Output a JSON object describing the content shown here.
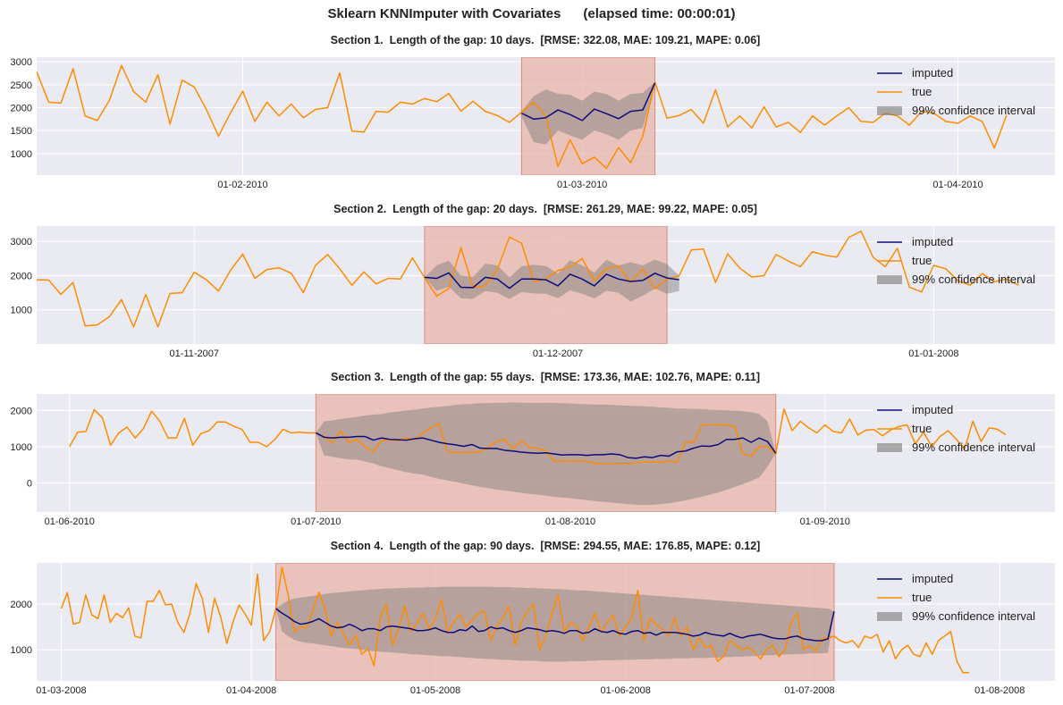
{
  "figure": {
    "title": "Sklearn KNNImputer with Covariates",
    "elapsed": "(elapsed time: 00:00:01)"
  },
  "legend": {
    "imputed": "imputed",
    "true": "true",
    "ci": "99% confidence interval"
  },
  "colors": {
    "imputed": "#0d0d7a",
    "true": "#ff8c00",
    "ci": "#7a7a7a",
    "gap": "#e8b4a8",
    "gap_edge": "#d98a78",
    "axes_bg": "#eaeaf2",
    "grid": "#ffffff"
  },
  "chart_data": [
    {
      "type": "line",
      "title": "Section 1.  Length of the gap: 10 days.  [RMSE: 322.08, MAE: 109.21, MAPE: 0.06]",
      "x_tick_labels": [
        "01-02-2010",
        "01-03-2010",
        "01-04-2010"
      ],
      "x_tick_positions": [
        17,
        45,
        76
      ],
      "xlim": [
        0,
        84
      ],
      "ylim": [
        530,
        3100
      ],
      "y_ticks": [
        1000,
        1500,
        2000,
        2500,
        3000
      ],
      "y_tick_labels": [
        "1000",
        "1500",
        "2000",
        "2500",
        "3000"
      ],
      "gap": [
        40,
        51
      ],
      "true": [
        2780,
        2120,
        2100,
        2850,
        1820,
        1720,
        2160,
        2920,
        2350,
        2120,
        2720,
        1640,
        2600,
        2450,
        1960,
        1380,
        1890,
        2360,
        1700,
        2120,
        1820,
        2080,
        1780,
        1960,
        2000,
        2760,
        1490,
        1470,
        1920,
        1900,
        2120,
        2080,
        2200,
        2130,
        2310,
        1920,
        2140,
        1920,
        1830,
        1680,
        1900,
        2120,
        1820,
        720,
        1300,
        780,
        920,
        680,
        1130,
        800,
        1380,
        2560,
        1770,
        1830,
        1960,
        1660,
        2390,
        1580,
        1820,
        1560,
        2020,
        1580,
        1680,
        1460,
        1820,
        1620,
        1820,
        2000,
        1700,
        1680,
        1880,
        1820,
        1620,
        1920,
        1880,
        1700,
        1660,
        1820,
        1700,
        1120,
        1830
      ],
      "imputed": [
        1880,
        1750,
        1780,
        1950,
        1850,
        1720,
        1970,
        1870,
        1760,
        1920,
        1950,
        2540
      ],
      "ci_lower": [
        1800,
        1250,
        1200,
        1500,
        1400,
        1300,
        1500,
        1420,
        1300,
        1500,
        1560,
        2520
      ],
      "ci_upper": [
        1920,
        2250,
        2400,
        2300,
        2280,
        2150,
        2350,
        2300,
        2150,
        2300,
        2320,
        2560
      ]
    },
    {
      "type": "line",
      "title": "Section 2.  Length of the gap: 20 days.  [RMSE: 261.29, MAE: 99.22, MAPE: 0.05]",
      "x_tick_labels": [
        "01-11-2007",
        "01-12-2007",
        "01-01-2008"
      ],
      "x_tick_positions": [
        13,
        43,
        74
      ],
      "xlim": [
        0,
        84
      ],
      "ylim": [
        0,
        3450
      ],
      "y_ticks": [
        1000,
        2000,
        3000
      ],
      "y_tick_labels": [
        "1000",
        "2000",
        "3000"
      ],
      "gap": [
        32,
        52
      ],
      "true": [
        1880,
        1870,
        1450,
        1800,
        530,
        560,
        800,
        1300,
        500,
        1450,
        500,
        1480,
        1500,
        2100,
        1880,
        1550,
        2160,
        2630,
        1920,
        2180,
        2230,
        2070,
        1500,
        2300,
        2620,
        2200,
        1720,
        2110,
        1760,
        1920,
        1900,
        2520,
        1940,
        1400,
        1620,
        2820,
        1660,
        1700,
        2180,
        3130,
        2950,
        1820,
        1900,
        2150,
        2250,
        2500,
        1850,
        2200,
        2280,
        1800,
        2200,
        1620,
        1900,
        2000,
        2750,
        2780,
        1800,
        2640,
        2220,
        1960,
        2000,
        2620,
        2430,
        2260,
        2700,
        2600,
        2540,
        3120,
        3300,
        2540,
        2260,
        2800,
        1660,
        1520,
        2300,
        2200,
        1850,
        1720,
        2060,
        1820,
        1900,
        1720
      ],
      "imputed": [
        1950,
        1920,
        2080,
        1660,
        1650,
        1950,
        1900,
        1630,
        1900,
        1900,
        1880,
        1700,
        2040,
        1900,
        1700,
        2040,
        1900,
        1830,
        1860,
        2070,
        1930,
        1880
      ],
      "ci_lower": [
        1950,
        1560,
        1680,
        1340,
        1320,
        1550,
        1500,
        1320,
        1520,
        1480,
        1470,
        1340,
        1570,
        1470,
        1330,
        1560,
        1500,
        1240,
        1410,
        1620,
        1470,
        1550
      ],
      "ci_upper": [
        1950,
        2300,
        2440,
        2000,
        1960,
        2350,
        2300,
        1950,
        2270,
        2320,
        2280,
        2060,
        2450,
        2300,
        2090,
        2460,
        2300,
        2390,
        2300,
        2470,
        2340,
        2000
      ]
    },
    {
      "type": "line",
      "title": "Section 3.  Length of the gap: 55 days.  [RMSE: 173.36, MAE: 102.76, MAPE: 0.11]",
      "x_tick_labels": [
        "01-06-2010",
        "01-07-2010",
        "01-08-2010",
        "01-09-2010"
      ],
      "x_tick_positions": [
        0,
        30,
        61,
        92
      ],
      "xlim": [
        -4,
        120
      ],
      "ylim": [
        -800,
        2450
      ],
      "y_ticks": [
        0,
        1000,
        2000
      ],
      "y_tick_labels": [
        "0",
        "1000",
        "2000"
      ],
      "gap": [
        30,
        86
      ],
      "true": [
        1000,
        1400,
        1420,
        2020,
        1800,
        1040,
        1380,
        1540,
        1240,
        1500,
        1980,
        1700,
        1240,
        1240,
        1780,
        1040,
        1360,
        1440,
        1680,
        1680,
        1560,
        1480,
        1120,
        1120,
        1000,
        1200,
        1480,
        1380,
        1400,
        1380,
        1380,
        1280,
        1100,
        1440,
        1120,
        1200,
        1000,
        860,
        1160,
        1200,
        1160,
        1240,
        1200,
        1360,
        1520,
        1640,
        860,
        840,
        840,
        840,
        860,
        980,
        1140,
        1200,
        940,
        1160,
        980,
        960,
        880,
        600,
        600,
        600,
        600,
        600,
        540,
        540,
        540,
        540,
        540,
        560,
        580,
        580,
        580,
        600,
        580,
        1120,
        1120,
        1600,
        1600,
        1600,
        1600,
        1560,
        800,
        740,
        1000,
        1000,
        800,
        2040,
        1440,
        1700,
        1520,
        1380,
        1600,
        1420,
        1380,
        1760,
        1320,
        1460,
        1470,
        1300,
        1460,
        1560,
        1600,
        1080,
        1400,
        1000,
        1280,
        1440,
        1200,
        940,
        1700,
        1140,
        1520,
        1480,
        1330
      ],
      "imputed": [
        1380,
        1260,
        1240,
        1260,
        1260,
        1280,
        1280,
        1180,
        1240,
        1200,
        1190,
        1180,
        1220,
        1240,
        1180,
        1120,
        1080,
        1050,
        1010,
        1060,
        960,
        950,
        950,
        900,
        880,
        850,
        830,
        820,
        830,
        800,
        770,
        780,
        780,
        760,
        780,
        780,
        800,
        780,
        700,
        680,
        720,
        700,
        760,
        740,
        860,
        880,
        960,
        1020,
        1010,
        1060,
        1200,
        1200,
        1240,
        1120,
        1240,
        1140,
        820
      ],
      "ci_lower": [
        1380,
        760,
        720,
        680,
        650,
        640,
        590,
        540,
        460,
        410,
        350,
        300,
        260,
        230,
        170,
        110,
        70,
        30,
        -20,
        -60,
        -110,
        -140,
        -180,
        -210,
        -240,
        -270,
        -300,
        -320,
        -350,
        -380,
        -400,
        -420,
        -450,
        -470,
        -500,
        -520,
        -540,
        -560,
        -580,
        -600,
        -610,
        -600,
        -580,
        -560,
        -520,
        -480,
        -430,
        -380,
        -320,
        -260,
        -190,
        -110,
        -30,
        60,
        150,
        450,
        820
      ],
      "ci_upper": [
        1380,
        1700,
        1720,
        1760,
        1790,
        1820,
        1860,
        1880,
        1900,
        1940,
        1970,
        2000,
        2020,
        2050,
        2080,
        2100,
        2120,
        2150,
        2170,
        2180,
        2200,
        2200,
        2210,
        2210,
        2220,
        2210,
        2210,
        2200,
        2210,
        2210,
        2200,
        2190,
        2180,
        2170,
        2160,
        2160,
        2150,
        2140,
        2130,
        2120,
        2110,
        2100,
        2080,
        2070,
        2050,
        2050,
        2040,
        2030,
        2020,
        2010,
        2000,
        1990,
        1980,
        1950,
        1900,
        1700,
        820
      ]
    },
    {
      "type": "line",
      "title": "Section 4.  Length of the gap: 90 days.  [RMSE: 294.55, MAE: 176.85, MAPE: 0.12]",
      "x_tick_labels": [
        "01-03-2008",
        "01-04-2008",
        "01-05-2008",
        "01-06-2008",
        "01-07-2008",
        "01-08-2008"
      ],
      "x_tick_positions": [
        0,
        31,
        61,
        92,
        122,
        153
      ],
      "xlim": [
        -4,
        162
      ],
      "ylim": [
        320,
        2900
      ],
      "y_ticks": [
        1000,
        2000
      ],
      "y_tick_labels": [
        "1000",
        "2000"
      ],
      "gap": [
        35,
        126
      ],
      "true": [
        1900,
        2250,
        1560,
        1600,
        2200,
        1760,
        1680,
        2200,
        1600,
        1800,
        1700,
        1920,
        1300,
        1260,
        2060,
        2060,
        2300,
        1980,
        2000,
        1600,
        1380,
        1800,
        2450,
        2120,
        1380,
        2130,
        1720,
        1140,
        1600,
        1980,
        1780,
        1540,
        2660,
        1200,
        1400,
        1900,
        2800,
        2200,
        1400,
        1500,
        1480,
        1840,
        2260,
        1900,
        1300,
        1600,
        1350,
        1100,
        1320,
        900,
        1020,
        650,
        1700,
        2000,
        1100,
        1460,
        1960,
        1400,
        1580,
        1800,
        1450,
        1680,
        2100,
        1400,
        1600,
        1780,
        1500,
        1650,
        1800,
        1850,
        1200,
        1500,
        1700,
        1950,
        1100,
        1600,
        1850,
        2000,
        1000,
        1300,
        1800,
        2200,
        1400,
        1600,
        1520,
        1200,
        1500,
        1800,
        1400,
        1600,
        1750,
        1300,
        1500,
        1700,
        2300,
        1200,
        1700,
        1550,
        1450,
        1300,
        1700,
        1300,
        1500,
        1000,
        1250,
        1050,
        1100,
        750,
        850,
        1200,
        1100,
        1000,
        1050,
        950,
        800,
        1000,
        1100,
        850,
        1000,
        1600,
        1800,
        1000,
        1100,
        960,
        1250,
        1250,
        1300,
        1200,
        1150,
        1200,
        1050,
        1300,
        1250,
        1340,
        950,
        1200,
        800,
        1000,
        1100,
        900,
        850,
        1150,
        900,
        1200,
        1300,
        1400,
        750,
        500,
        500
      ],
      "imputed": [
        1900,
        1800,
        1720,
        1620,
        1560,
        1580,
        1620,
        1680,
        1600,
        1520,
        1480,
        1500,
        1560,
        1500,
        1420,
        1460,
        1460,
        1420,
        1500,
        1520,
        1500,
        1480,
        1460,
        1420,
        1420,
        1440,
        1480,
        1420,
        1380,
        1380,
        1440,
        1420,
        1520,
        1400,
        1420,
        1500,
        1460,
        1480,
        1420,
        1380,
        1420,
        1480,
        1460,
        1440,
        1400,
        1420,
        1400,
        1360,
        1420,
        1420,
        1360,
        1380,
        1460,
        1400,
        1380,
        1420,
        1360,
        1340,
        1400,
        1420,
        1360,
        1380,
        1320,
        1380,
        1380,
        1380,
        1360,
        1340,
        1300,
        1320,
        1380,
        1340,
        1320,
        1300,
        1360,
        1300,
        1260,
        1300,
        1320,
        1340,
        1300,
        1260,
        1240,
        1240,
        1280,
        1300,
        1240,
        1220,
        1200,
        1200,
        1240,
        1840
      ],
      "ci_lower": [
        1900,
        1400,
        1300,
        1220,
        1180,
        1150,
        1140,
        1120,
        1100,
        1080,
        1060,
        1040,
        1030,
        1020,
        1000,
        980,
        970,
        960,
        950,
        940,
        930,
        920,
        900,
        900,
        890,
        880,
        870,
        860,
        860,
        850,
        840,
        830,
        820,
        810,
        800,
        800,
        790,
        780,
        780,
        770,
        760,
        760,
        760,
        750,
        740,
        740,
        740,
        740,
        750,
        750,
        750,
        760,
        760,
        770,
        770,
        770,
        780,
        780,
        780,
        790,
        790,
        790,
        800,
        800,
        800,
        810,
        810,
        810,
        820,
        820,
        820,
        830,
        830,
        840,
        840,
        850,
        850,
        860,
        860,
        870,
        880,
        880,
        890,
        900,
        900,
        910,
        910,
        920,
        920,
        920,
        930,
        1840
      ],
      "ci_upper": [
        1900,
        2000,
        2080,
        2120,
        2140,
        2160,
        2180,
        2200,
        2220,
        2240,
        2250,
        2260,
        2280,
        2290,
        2300,
        2310,
        2320,
        2330,
        2340,
        2340,
        2350,
        2350,
        2360,
        2360,
        2360,
        2370,
        2370,
        2380,
        2380,
        2380,
        2380,
        2380,
        2380,
        2380,
        2380,
        2380,
        2370,
        2370,
        2370,
        2360,
        2360,
        2350,
        2350,
        2340,
        2340,
        2330,
        2330,
        2320,
        2310,
        2300,
        2300,
        2290,
        2280,
        2270,
        2260,
        2250,
        2240,
        2230,
        2220,
        2210,
        2200,
        2190,
        2180,
        2170,
        2160,
        2150,
        2140,
        2130,
        2120,
        2110,
        2100,
        2090,
        2080,
        2070,
        2060,
        2050,
        2040,
        2030,
        2020,
        2010,
        2000,
        1990,
        1980,
        1970,
        1960,
        1950,
        1940,
        1930,
        1920,
        1910,
        1900,
        1840
      ]
    }
  ]
}
